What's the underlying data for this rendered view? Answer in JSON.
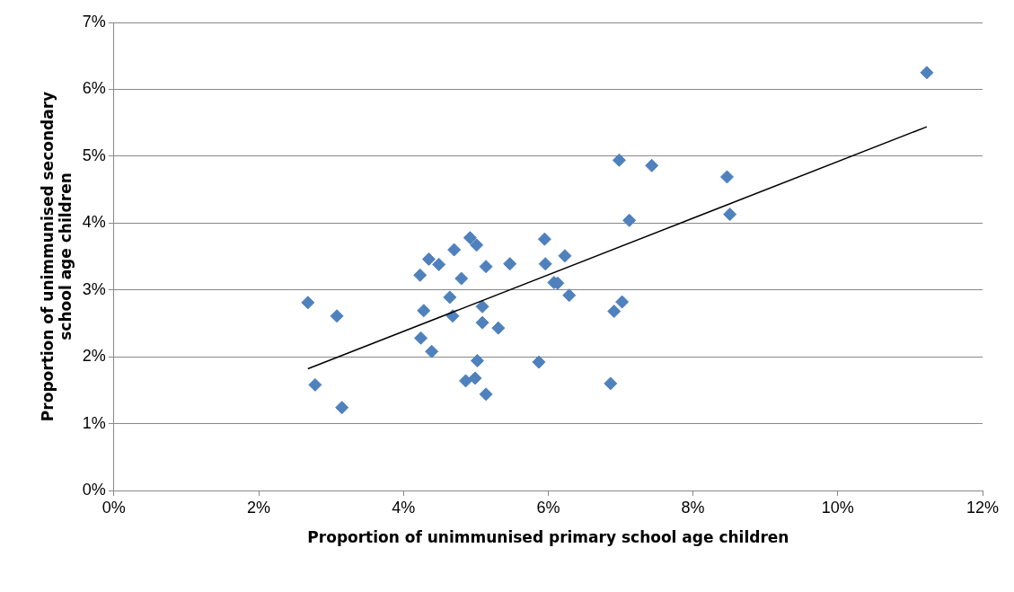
{
  "chart_data": {
    "type": "scatter",
    "xlabel": "Proportion of unimmunised primary school age children",
    "ylabel": "Proportion of unimmunised secondary school age children",
    "grid": "y",
    "legend": false,
    "marker": "diamond",
    "xlim": [
      0,
      12
    ],
    "xticks": [
      {
        "value": 0,
        "label": "0%"
      },
      {
        "value": 2,
        "label": "2%"
      },
      {
        "value": 4,
        "label": "4%"
      },
      {
        "value": 6,
        "label": "6%"
      },
      {
        "value": 8,
        "label": "8%"
      },
      {
        "value": 10,
        "label": "10%"
      },
      {
        "value": 12,
        "label": "12%"
      }
    ],
    "ylim": [
      0,
      7
    ],
    "yticks": [
      {
        "value": 0,
        "label": "0%"
      },
      {
        "value": 1,
        "label": "1%"
      },
      {
        "value": 2,
        "label": "2%"
      },
      {
        "value": 3,
        "label": "3%"
      },
      {
        "value": 4,
        "label": "4%"
      },
      {
        "value": 5,
        "label": "5%"
      },
      {
        "value": 6,
        "label": "6%"
      },
      {
        "value": 7,
        "label": "7%"
      }
    ],
    "series": [
      {
        "type": "scatter",
        "color": "#4f81bd",
        "x": [
          2.68,
          2.78,
          3.08,
          3.15,
          4.23,
          4.24,
          4.28,
          4.35,
          4.39,
          4.49,
          4.64,
          4.7,
          4.68,
          4.8,
          4.86,
          4.92,
          5.01,
          4.99,
          5.02,
          5.09,
          5.09,
          5.14,
          5.14,
          5.31,
          5.47,
          5.87,
          5.95,
          5.96,
          6.08,
          6.13,
          6.23,
          6.29,
          6.86,
          6.91,
          6.98,
          7.02,
          7.12,
          7.43,
          8.47,
          8.51,
          11.23
        ],
        "values": [
          2.81,
          1.58,
          2.61,
          1.24,
          3.22,
          2.28,
          2.69,
          3.46,
          2.08,
          3.38,
          2.89,
          3.6,
          2.61,
          3.17,
          1.64,
          3.78,
          3.67,
          1.68,
          1.94,
          2.75,
          2.51,
          3.35,
          1.44,
          2.43,
          3.39,
          1.92,
          3.76,
          3.39,
          3.11,
          3.1,
          3.51,
          2.92,
          1.6,
          2.68,
          4.94,
          2.82,
          4.04,
          4.86,
          4.69,
          4.13,
          6.25
        ]
      },
      {
        "type": "line",
        "color": "#000000",
        "marker": "none",
        "x": [
          2.68,
          11.23
        ],
        "values": [
          1.82,
          5.44
        ]
      }
    ]
  }
}
